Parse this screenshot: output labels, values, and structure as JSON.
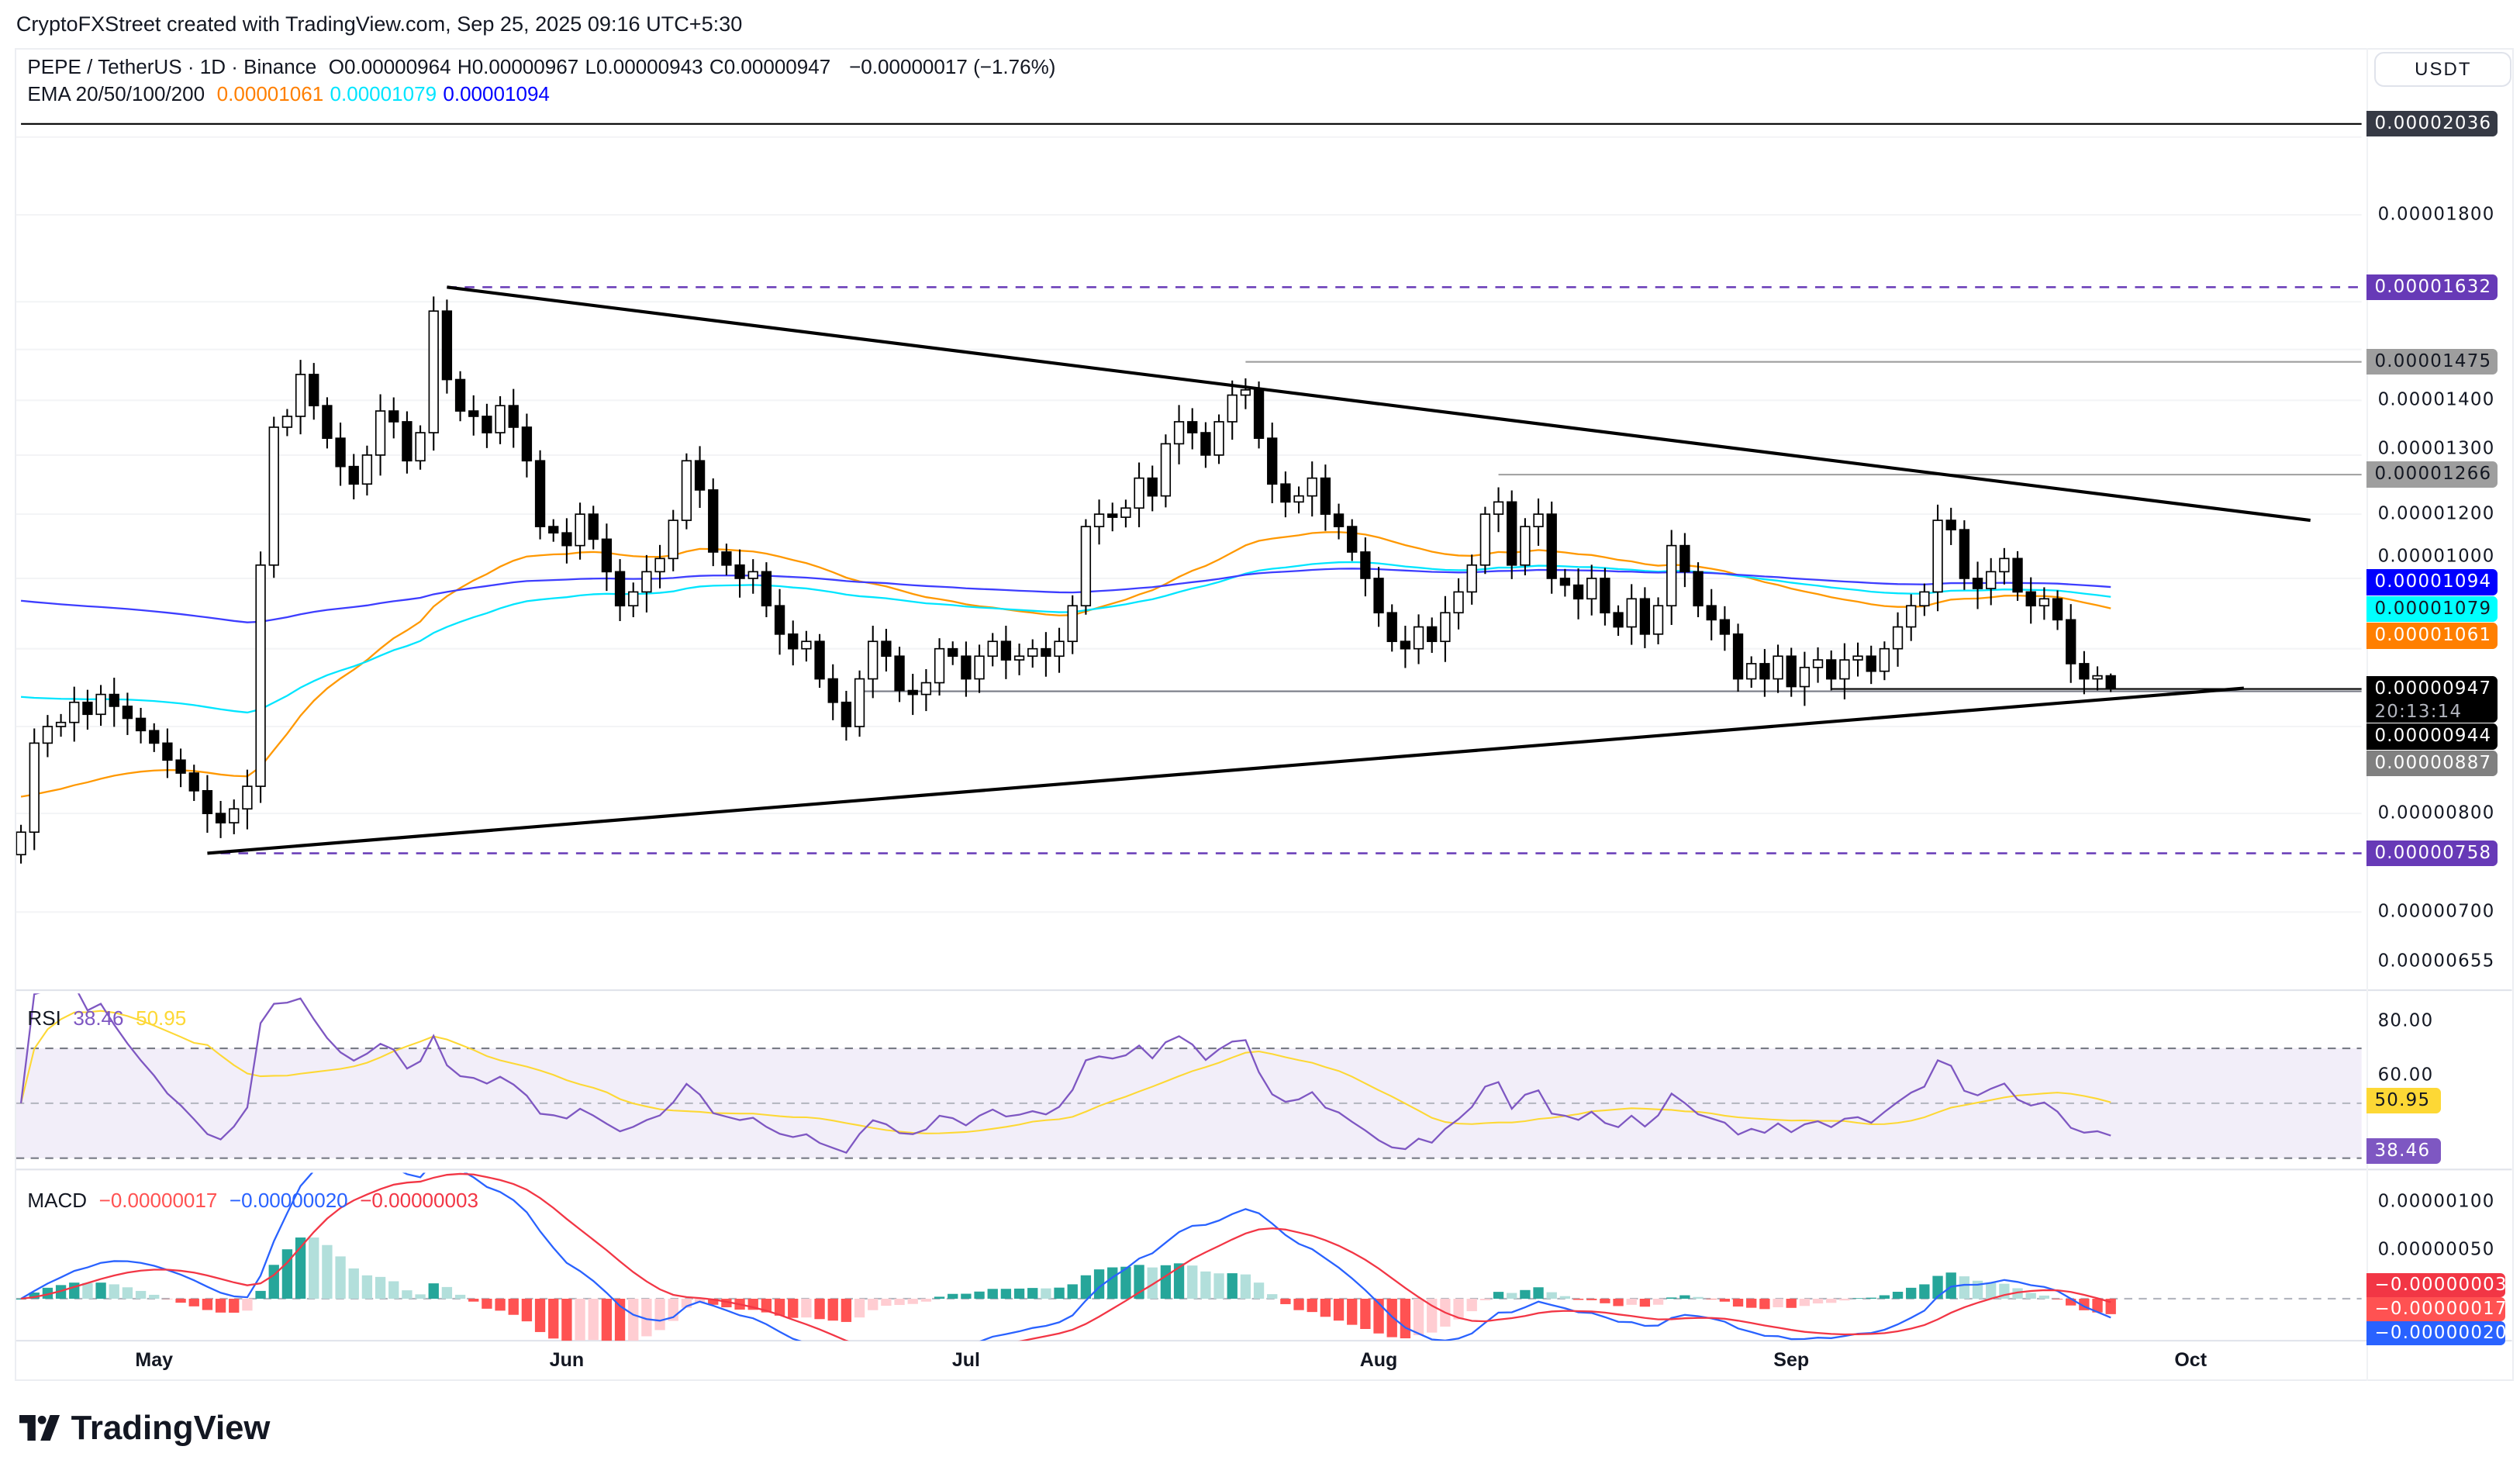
{
  "attribution": "CryptoFXStreet created with TradingView.com, Sep 25, 2025 09:16 UTC+5:30",
  "header": {
    "symbol": "PEPE / TetherUS · 1D · Binance",
    "ohlc": [
      {
        "key": "O",
        "value": "0.00000964"
      },
      {
        "key": "H",
        "value": "0.00000967"
      },
      {
        "key": "L",
        "value": "0.00000943"
      },
      {
        "key": "C",
        "value": "0.00000947"
      }
    ],
    "change": "−0.00000017 (−1.76%)",
    "ema_label": "EMA 20/50/100/200",
    "ema_values": [
      {
        "value": "0.00001061",
        "color": "#ff7f00"
      },
      {
        "value": "0.00001079",
        "color": "#00e5ff"
      },
      {
        "value": "0.00001094",
        "color": "#0000ff"
      }
    ]
  },
  "price_axis": {
    "currency": "USDT",
    "scale": "log",
    "ticks": [
      "0.00001800",
      "0.00001400",
      "0.00001300",
      "0.00001200",
      "0.00001000",
      "0.00000800",
      "0.00000700",
      "0.00000655"
    ],
    "badges": [
      {
        "text": "0.00002036",
        "bg": "#363a45",
        "fg": "#ffffff"
      },
      {
        "text": "0.00001632",
        "bg": "#673ab7",
        "fg": "#ffffff"
      },
      {
        "text": "0.00001475",
        "bg": "#9e9e9e",
        "fg": "#131722"
      },
      {
        "text": "0.00001266",
        "bg": "#9e9e9e",
        "fg": "#131722"
      },
      {
        "text": "0.00001094",
        "bg": "#0000ff",
        "fg": "#ffffff"
      },
      {
        "text": "0.00001079",
        "bg": "#00ffff",
        "fg": "#131722"
      },
      {
        "text": "0.00001061",
        "bg": "#ff7f00",
        "fg": "#ffffff"
      },
      {
        "text": "0.00000947",
        "sub": "20:13:14",
        "bg": "#000000",
        "fg": "#ffffff"
      },
      {
        "text": "0.00000944",
        "bg": "#000000",
        "fg": "#ffffff"
      },
      {
        "text": "0.00000887",
        "bg": "#808080",
        "fg": "#ffffff"
      },
      {
        "text": "0.00000758",
        "bg": "#673ab7",
        "fg": "#ffffff"
      }
    ]
  },
  "time_axis": [
    {
      "label": "May",
      "date": "2025-05-01"
    },
    {
      "label": "Jun",
      "date": "2025-06-01"
    },
    {
      "label": "Jul",
      "date": "2025-07-01"
    },
    {
      "label": "Aug",
      "date": "2025-08-01"
    },
    {
      "label": "Sep",
      "date": "2025-09-01"
    },
    {
      "label": "Oct",
      "date": "2025-10-01"
    }
  ],
  "rsi": {
    "label": "RSI",
    "value": "38.46",
    "ma": "50.95",
    "ticks": [
      "80.00",
      "60.00"
    ],
    "color": "#7e57c2",
    "ma_color": "#fdd835"
  },
  "macd": {
    "label": "MACD",
    "hist": "−0.00000017",
    "macd": "−0.00000020",
    "signal": "−0.00000003",
    "ticks": [
      "0.00000100",
      "0.00000050"
    ],
    "axis_badges": [
      {
        "text": "−0.00000003",
        "bg": "#f23645"
      },
      {
        "text": "−0.00000017",
        "bg": "#ff5252"
      },
      {
        "text": "−0.00000020",
        "bg": "#2962ff"
      }
    ]
  },
  "logo": "TradingView",
  "chart_data": {
    "type": "candlestick",
    "symbol": "PEPE / TetherUS",
    "interval": "1D",
    "start_date": "2025-04-21",
    "end_date": "2025-09-25",
    "ylim": [
      6.4e-06,
      2.1e-05
    ],
    "close": [
      7.8e-06,
      8.8e-06,
      9e-06,
      9.05e-06,
      9.3e-06,
      9.15e-06,
      9.4e-06,
      9.25e-06,
      9.1e-06,
      8.95e-06,
      8.8e-06,
      8.6e-06,
      8.45e-06,
      8.25e-06,
      8e-06,
      7.9e-06,
      8.05e-06,
      8.3e-06,
      1.12e-05,
      1.35e-05,
      1.37e-05,
      1.45e-05,
      1.39e-05,
      1.33e-05,
      1.28e-05,
      1.25e-05,
      1.3e-05,
      1.38e-05,
      1.36e-05,
      1.29e-05,
      1.34e-05,
      1.58e-05,
      1.44e-05,
      1.38e-05,
      1.37e-05,
      1.34e-05,
      1.39e-05,
      1.35e-05,
      1.29e-05,
      1.18e-05,
      1.17e-05,
      1.15e-05,
      1.2e-05,
      1.16e-05,
      1.11e-05,
      1.06e-05,
      1.08e-05,
      1.11e-05,
      1.13e-05,
      1.19e-05,
      1.29e-05,
      1.24e-05,
      1.14e-05,
      1.12e-05,
      1.1e-05,
      1.11e-05,
      1.06e-05,
      1.02e-05,
      1e-05,
      1.01e-05,
      9.6e-06,
      9.3e-06,
      9e-06,
      9.6e-06,
      1.01e-05,
      9.9e-06,
      9.45e-06,
      9.4e-06,
      9.55e-06,
      1e-05,
      9.9e-06,
      9.6e-06,
      9.9e-06,
      1.01e-05,
      9.85e-06,
      9.9e-06,
      1e-05,
      9.9e-06,
      1.01e-05,
      1.06e-05,
      1.18e-05,
      1.2e-05,
      1.195e-05,
      1.21e-05,
      1.26e-05,
      1.23e-05,
      1.32e-05,
      1.36e-05,
      1.34e-05,
      1.3e-05,
      1.36e-05,
      1.41e-05,
      1.42e-05,
      1.33e-05,
      1.25e-05,
      1.22e-05,
      1.23e-05,
      1.26e-05,
      1.2e-05,
      1.18e-05,
      1.14e-05,
      1.1e-05,
      1.05e-05,
      1.01e-05,
      1e-05,
      1.03e-05,
      1.01e-05,
      1.05e-05,
      1.08e-05,
      1.12e-05,
      1.2e-05,
      1.22e-05,
      1.12e-05,
      1.18e-05,
      1.2e-05,
      1.1e-05,
      1.09e-05,
      1.07e-05,
      1.1e-05,
      1.05e-05,
      1.03e-05,
      1.07e-05,
      1.02e-05,
      1.06e-05,
      1.15e-05,
      1.11e-05,
      1.06e-05,
      1.04e-05,
      1.02e-05,
      9.6e-06,
      9.8e-06,
      9.6e-06,
      9.9e-06,
      9.5e-06,
      9.75e-06,
      9.85e-06,
      9.6e-06,
      9.85e-06,
      9.9e-06,
      9.7e-06,
      1e-05,
      1.03e-05,
      1.06e-05,
      1.08e-05,
      1.19e-05,
      1.175e-05,
      1.1e-05,
      1.085e-05,
      1.11e-05,
      1.13e-05,
      1.08e-05,
      1.06e-05,
      1.07e-05,
      1.04e-05,
      9.8e-06,
      9.6e-06,
      9.64e-06,
      9.47e-06
    ],
    "indicators": [
      "EMA 20",
      "EMA 50",
      "EMA 100",
      "EMA 200",
      "RSI 14",
      "MACD 12 26 9"
    ],
    "levels": [
      {
        "price": 2.036e-05,
        "from": "2025-04-21",
        "style": "solid",
        "color": "#000000"
      },
      {
        "price": 1.632e-05,
        "from": "2025-05-23",
        "style": "dashed",
        "color": "#673ab7"
      },
      {
        "price": 1.475e-05,
        "from": "2025-07-22",
        "style": "solid",
        "color": "#9e9e9e"
      },
      {
        "price": 1.266e-05,
        "from": "2025-08-10",
        "style": "solid",
        "color": "#9e9e9e"
      },
      {
        "price": 9.47e-06,
        "from": "2025-09-04",
        "style": "solid",
        "color": "#000000"
      },
      {
        "price": 9.44e-06,
        "from": "2025-06-23",
        "style": "solid",
        "color": "#787b86"
      },
      {
        "price": 7.58e-06,
        "from": "2025-05-06",
        "style": "dashed",
        "color": "#673ab7"
      }
    ],
    "trendlines": [
      {
        "name": "upper",
        "from": {
          "date": "2025-05-23",
          "price": 1.632e-05
        },
        "to": {
          "date": "2025-10-10",
          "price": 1.19e-05
        }
      },
      {
        "name": "lower",
        "from": {
          "date": "2025-05-05",
          "price": 7.58e-06
        },
        "to": {
          "date": "2025-10-05",
          "price": 9.48e-06
        }
      }
    ]
  }
}
